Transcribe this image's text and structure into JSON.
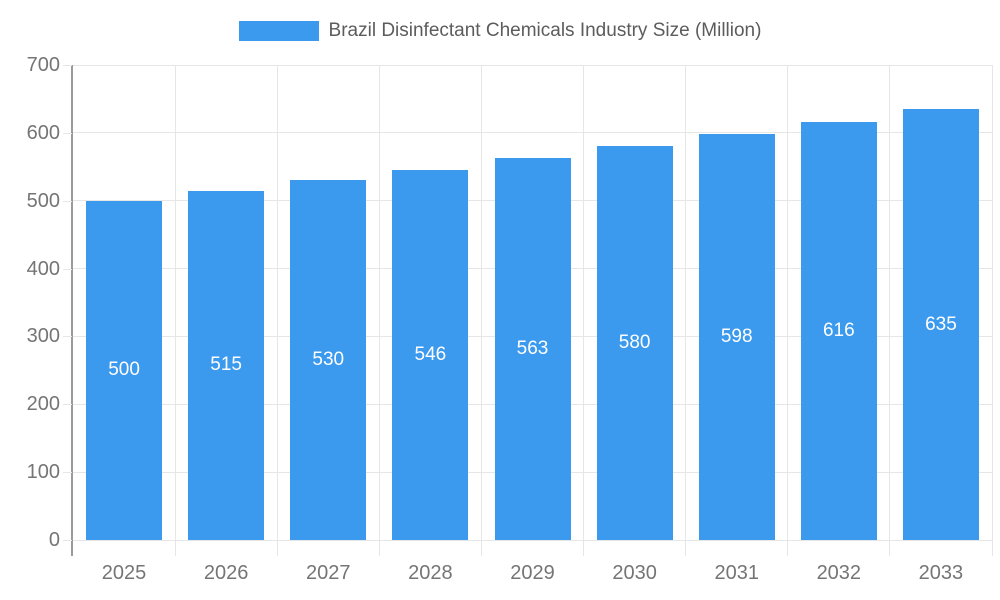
{
  "legend": {
    "series_label": "Brazil Disinfectant Chemicals Industry Size (Million)",
    "swatch": "blue-rectangle"
  },
  "colors": {
    "bar": "#3B99EE",
    "grid": "#e6e6e6",
    "axis_line": "#9a9a9a",
    "axis_text": "#757575",
    "title_text": "#5c5c5c",
    "value_text": "#ffffff",
    "background": "#ffffff"
  },
  "chart_data": {
    "type": "bar",
    "title": "Brazil Disinfectant Chemicals Industry Size (Million)",
    "categories": [
      "2025",
      "2026",
      "2027",
      "2028",
      "2029",
      "2030",
      "2031",
      "2032",
      "2033"
    ],
    "values": [
      500,
      515,
      530,
      546,
      563,
      580,
      598,
      616,
      635
    ],
    "xlabel": "",
    "ylabel": "",
    "ylim": [
      0,
      700
    ],
    "ytick_step": 100,
    "ytick_labels": [
      "0",
      "100",
      "200",
      "300",
      "400",
      "500",
      "600",
      "700"
    ],
    "grid": "on",
    "legend_position": "top-center",
    "value_labels": "inside-middle-white"
  }
}
